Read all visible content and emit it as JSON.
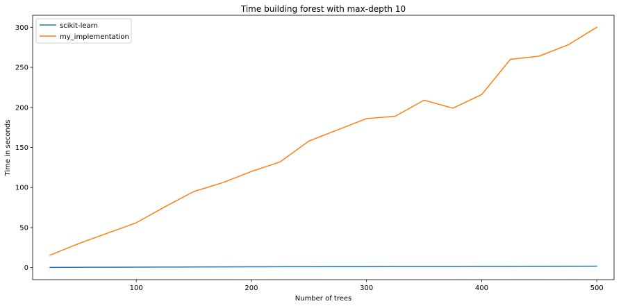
{
  "chart_data": {
    "type": "line",
    "title": "Time building forest with max-depth 10",
    "xlabel": "Number of trees",
    "ylabel": "Time in seconds",
    "xlim": [
      10,
      515
    ],
    "ylim": [
      -15,
      315
    ],
    "x_ticks": [
      100,
      200,
      300,
      400,
      500
    ],
    "y_ticks": [
      0,
      50,
      100,
      150,
      200,
      250,
      300
    ],
    "grid": false,
    "legend_position": "top-left",
    "x": [
      25,
      50,
      75,
      100,
      125,
      150,
      175,
      200,
      225,
      250,
      275,
      300,
      325,
      350,
      375,
      400,
      425,
      450,
      475,
      500
    ],
    "series": [
      {
        "name": "scikit-learn",
        "color": "#1f77b4",
        "values": [
          0.3,
          0.4,
          0.5,
          0.6,
          0.7,
          0.8,
          0.9,
          1.0,
          1.1,
          1.1,
          1.2,
          1.2,
          1.3,
          1.4,
          1.4,
          1.5,
          1.5,
          1.6,
          1.7,
          1.8
        ]
      },
      {
        "name": "my_implementation",
        "color": "#ff7f0e",
        "values": [
          15.5,
          30,
          43,
          56,
          76,
          95,
          106,
          120,
          132,
          158,
          172,
          186,
          189,
          209,
          199,
          216,
          260,
          264,
          278,
          300
        ]
      }
    ]
  }
}
